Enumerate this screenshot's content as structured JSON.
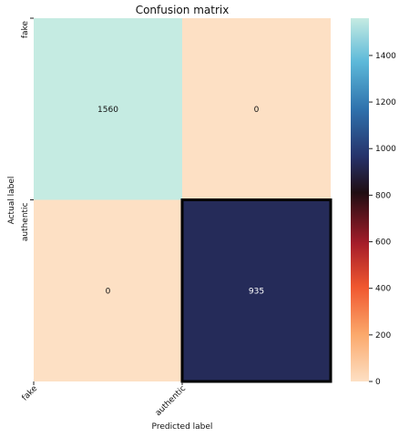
{
  "chart_data": {
    "type": "heatmap",
    "title": "Confusion matrix",
    "xlabel": "Predicted label",
    "ylabel": "Actual label",
    "x_categories": [
      "fake",
      "authentic"
    ],
    "y_categories": [
      "fake",
      "authentic"
    ],
    "values": [
      [
        1560,
        0
      ],
      [
        0,
        935
      ]
    ],
    "cell_labels": [
      [
        "1560",
        "0"
      ],
      [
        "0",
        "935"
      ]
    ],
    "colorbar": {
      "min": 0,
      "max": 1560,
      "ticks": [
        0,
        200,
        400,
        600,
        800,
        1000,
        1200,
        1400
      ],
      "colormap": [
        "#fde0c4",
        "#fba86b",
        "#f0572f",
        "#a51d2a",
        "#200d12",
        "#26336b",
        "#2f72ad",
        "#5db9d9",
        "#c5ebe2"
      ]
    },
    "grid": false,
    "highlight_color": "#000000"
  }
}
